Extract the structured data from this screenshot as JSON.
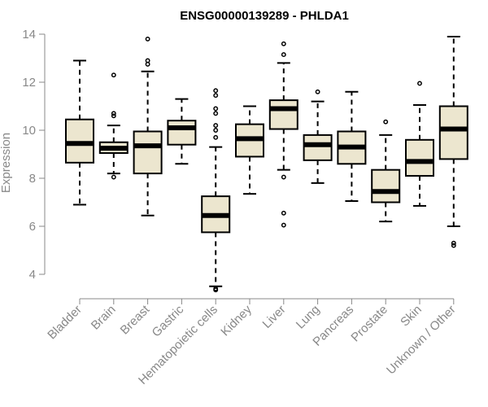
{
  "chart_data": {
    "type": "boxplot",
    "title": "ENSG00000139289 - PHLDA1",
    "ylabel": "Expression",
    "xlabel": "",
    "ylim": [
      3.2,
      14.2
    ],
    "yticks": [
      4,
      6,
      8,
      10,
      12,
      14
    ],
    "categories": [
      "Bladder",
      "Brain",
      "Breast",
      "Gastric",
      "Hematopoietic cells",
      "Kidney",
      "Liver",
      "Lung",
      "Pancreas",
      "Prostate",
      "Skin",
      "Unknown / Other"
    ],
    "boxes": [
      {
        "min": 6.9,
        "q1": 8.65,
        "median": 9.45,
        "q3": 10.45,
        "max": 12.9,
        "outliers": []
      },
      {
        "min": 8.2,
        "q1": 9.05,
        "median": 9.25,
        "q3": 9.5,
        "max": 10.2,
        "outliers": [
          8.05,
          10.6,
          10.7,
          12.3
        ]
      },
      {
        "min": 6.45,
        "q1": 8.2,
        "median": 9.35,
        "q3": 9.95,
        "max": 12.45,
        "outliers": [
          12.75,
          12.9,
          13.8
        ]
      },
      {
        "min": 8.6,
        "q1": 9.4,
        "median": 10.1,
        "q3": 10.4,
        "max": 11.3,
        "outliers": []
      },
      {
        "min": 3.5,
        "q1": 5.75,
        "median": 6.45,
        "q3": 7.25,
        "max": 9.3,
        "outliers": [
          3.35,
          3.4,
          9.7,
          10.0,
          10.2,
          10.7,
          10.9,
          11.45,
          11.65
        ]
      },
      {
        "min": 7.35,
        "q1": 8.9,
        "median": 9.65,
        "q3": 10.25,
        "max": 11.0,
        "outliers": []
      },
      {
        "min": 8.35,
        "q1": 10.05,
        "median": 10.9,
        "q3": 11.25,
        "max": 12.8,
        "outliers": [
          6.05,
          6.55,
          8.05,
          13.15,
          13.6
        ]
      },
      {
        "min": 7.8,
        "q1": 8.75,
        "median": 9.4,
        "q3": 9.8,
        "max": 11.2,
        "outliers": [
          11.6
        ]
      },
      {
        "min": 7.05,
        "q1": 8.6,
        "median": 9.3,
        "q3": 9.95,
        "max": 11.6,
        "outliers": []
      },
      {
        "min": 6.2,
        "q1": 7.0,
        "median": 7.45,
        "q3": 8.35,
        "max": 9.8,
        "outliers": [
          10.35
        ]
      },
      {
        "min": 6.85,
        "q1": 8.1,
        "median": 8.7,
        "q3": 9.6,
        "max": 11.05,
        "outliers": [
          11.95
        ]
      },
      {
        "min": 6.0,
        "q1": 8.8,
        "median": 10.05,
        "q3": 11.0,
        "max": 13.9,
        "outliers": [
          5.2,
          5.3
        ]
      }
    ],
    "grid": false,
    "legend": "none"
  }
}
